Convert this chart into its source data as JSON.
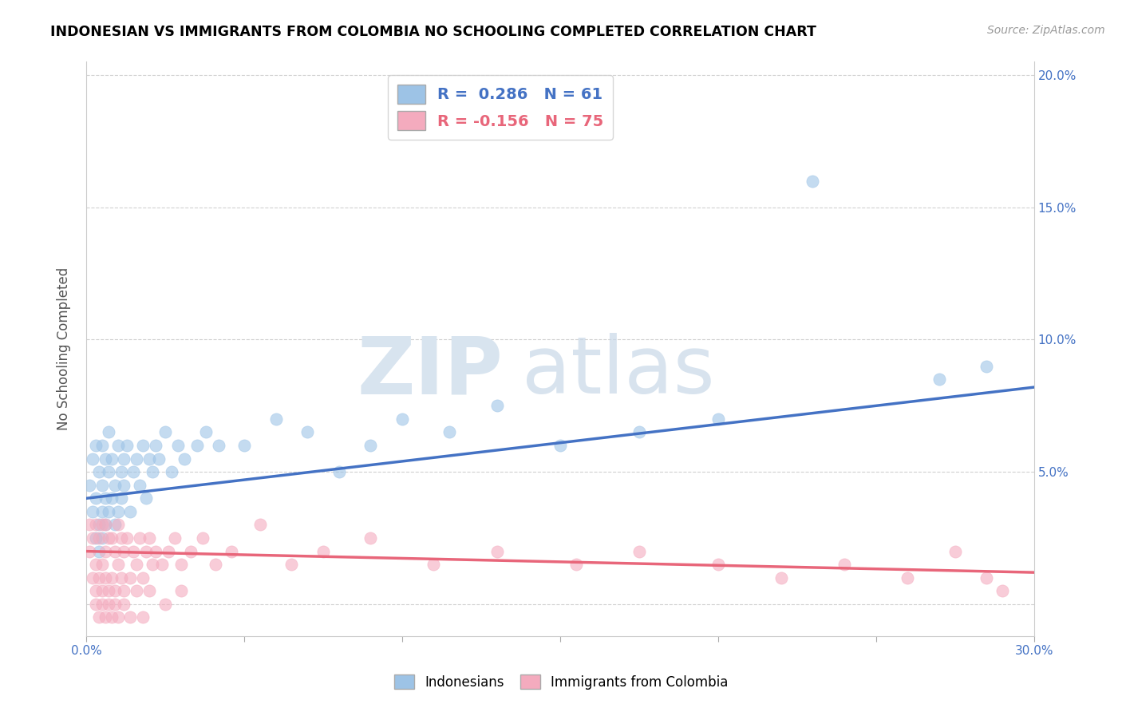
{
  "title": "INDONESIAN VS IMMIGRANTS FROM COLOMBIA NO SCHOOLING COMPLETED CORRELATION CHART",
  "source": "Source: ZipAtlas.com",
  "ylabel": "No Schooling Completed",
  "xlim": [
    0.0,
    0.3
  ],
  "ylim": [
    -0.012,
    0.205
  ],
  "xticks": [
    0.0,
    0.05,
    0.1,
    0.15,
    0.2,
    0.25,
    0.3
  ],
  "yticks": [
    0.0,
    0.05,
    0.1,
    0.15,
    0.2
  ],
  "ytick_labels_left": [
    "",
    "",
    "",
    "",
    ""
  ],
  "xtick_labels": [
    "0.0%",
    "",
    "",
    "",
    "",
    "",
    "30.0%"
  ],
  "right_ytick_labels": [
    "5.0%",
    "10.0%",
    "15.0%",
    "20.0%"
  ],
  "legend1_R": "0.286",
  "legend1_N": "61",
  "legend2_R": "-0.156",
  "legend2_N": "75",
  "color_blue": "#9DC3E6",
  "color_pink": "#F4ABBE",
  "line_blue": "#4472C4",
  "line_pink": "#E8667A",
  "watermark_zip": "ZIP",
  "watermark_atlas": "atlas",
  "indonesian_x": [
    0.001,
    0.002,
    0.002,
    0.003,
    0.003,
    0.003,
    0.004,
    0.004,
    0.004,
    0.005,
    0.005,
    0.005,
    0.005,
    0.006,
    0.006,
    0.006,
    0.007,
    0.007,
    0.007,
    0.008,
    0.008,
    0.009,
    0.009,
    0.01,
    0.01,
    0.011,
    0.011,
    0.012,
    0.012,
    0.013,
    0.014,
    0.015,
    0.016,
    0.017,
    0.018,
    0.019,
    0.02,
    0.021,
    0.022,
    0.023,
    0.025,
    0.027,
    0.029,
    0.031,
    0.035,
    0.038,
    0.042,
    0.05,
    0.06,
    0.07,
    0.08,
    0.09,
    0.1,
    0.115,
    0.13,
    0.15,
    0.175,
    0.2,
    0.23,
    0.27,
    0.285
  ],
  "indonesian_y": [
    0.045,
    0.035,
    0.055,
    0.025,
    0.04,
    0.06,
    0.03,
    0.05,
    0.02,
    0.035,
    0.045,
    0.06,
    0.025,
    0.04,
    0.055,
    0.03,
    0.035,
    0.05,
    0.065,
    0.04,
    0.055,
    0.03,
    0.045,
    0.06,
    0.035,
    0.05,
    0.04,
    0.055,
    0.045,
    0.06,
    0.035,
    0.05,
    0.055,
    0.045,
    0.06,
    0.04,
    0.055,
    0.05,
    0.06,
    0.055,
    0.065,
    0.05,
    0.06,
    0.055,
    0.06,
    0.065,
    0.06,
    0.06,
    0.07,
    0.065,
    0.05,
    0.06,
    0.07,
    0.065,
    0.075,
    0.06,
    0.065,
    0.07,
    0.16,
    0.085,
    0.09
  ],
  "colombian_x": [
    0.001,
    0.001,
    0.002,
    0.002,
    0.003,
    0.003,
    0.003,
    0.004,
    0.004,
    0.005,
    0.005,
    0.005,
    0.006,
    0.006,
    0.006,
    0.007,
    0.007,
    0.008,
    0.008,
    0.009,
    0.009,
    0.01,
    0.01,
    0.011,
    0.011,
    0.012,
    0.012,
    0.013,
    0.014,
    0.015,
    0.016,
    0.017,
    0.018,
    0.019,
    0.02,
    0.021,
    0.022,
    0.024,
    0.026,
    0.028,
    0.03,
    0.033,
    0.037,
    0.041,
    0.046,
    0.055,
    0.065,
    0.075,
    0.09,
    0.11,
    0.13,
    0.155,
    0.175,
    0.2,
    0.22,
    0.24,
    0.26,
    0.275,
    0.285,
    0.29,
    0.003,
    0.004,
    0.005,
    0.006,
    0.007,
    0.008,
    0.009,
    0.01,
    0.012,
    0.014,
    0.016,
    0.018,
    0.02,
    0.025,
    0.03
  ],
  "colombian_y": [
    0.02,
    0.03,
    0.01,
    0.025,
    0.005,
    0.015,
    0.03,
    0.01,
    0.025,
    0.005,
    0.015,
    0.03,
    0.01,
    0.02,
    0.03,
    0.005,
    0.025,
    0.01,
    0.025,
    0.005,
    0.02,
    0.015,
    0.03,
    0.01,
    0.025,
    0.005,
    0.02,
    0.025,
    0.01,
    0.02,
    0.015,
    0.025,
    0.01,
    0.02,
    0.025,
    0.015,
    0.02,
    0.015,
    0.02,
    0.025,
    0.015,
    0.02,
    0.025,
    0.015,
    0.02,
    0.03,
    0.015,
    0.02,
    0.025,
    0.015,
    0.02,
    0.015,
    0.02,
    0.015,
    0.01,
    0.015,
    0.01,
    0.02,
    0.01,
    0.005,
    0.0,
    -0.005,
    0.0,
    -0.005,
    0.0,
    -0.005,
    0.0,
    -0.005,
    0.0,
    -0.005,
    0.005,
    -0.005,
    0.005,
    0.0,
    0.005
  ]
}
